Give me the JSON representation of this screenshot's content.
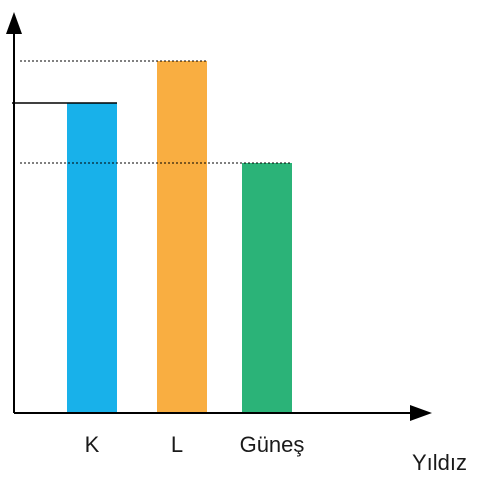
{
  "chart_data": {
    "type": "bar",
    "categories": [
      "K",
      "L",
      "Güneş"
    ],
    "values": [
      310,
      352,
      250
    ],
    "xlabel": "Yıldız",
    "ylabel": "",
    "ylim": [
      0,
      400
    ],
    "grid": false,
    "legend": "none",
    "reference_lines": [
      {
        "for": "K",
        "style": "solid"
      },
      {
        "for": "L",
        "style": "dotted"
      },
      {
        "for": "Güneş",
        "style": "dotted"
      }
    ],
    "bar_colors": [
      "#18b1ea",
      "#f9ae41",
      "#2bb378"
    ],
    "axis_color": "#000000",
    "watermark_color": "#bdbdbd"
  }
}
